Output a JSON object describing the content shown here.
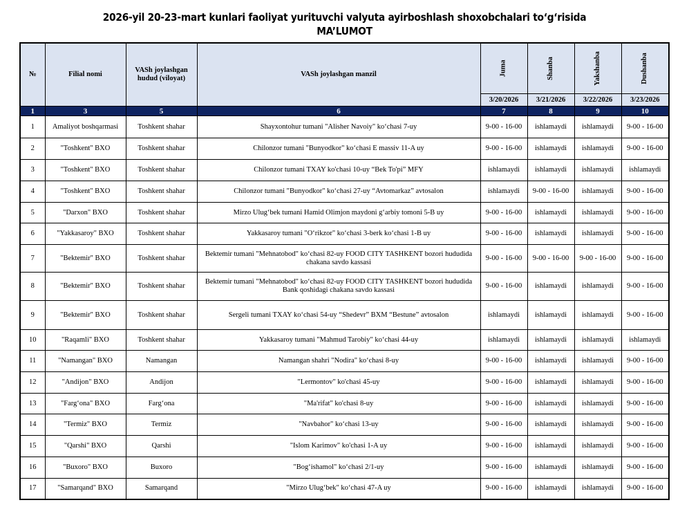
{
  "title": {
    "line1": "2026-yil 20-23-mart kunlari faoliyat yurituvchi valyuta ayirboshlash shoxobchalari to‘g‘risida",
    "line2": "MA’LUMOT"
  },
  "header": {
    "no": "№",
    "branch": "Filial nomi",
    "region": "VASh joylashgan hudud (viloyat)",
    "address": "VASh joylashgan manzil",
    "days": [
      {
        "name": "Juma",
        "date": "3/20/2026"
      },
      {
        "name": "Shanba",
        "date": "3/21/2026"
      },
      {
        "name": "Yakshanba",
        "date": "3/22/2026"
      },
      {
        "name": "Dushanba",
        "date": "3/23/2026"
      }
    ],
    "col_numbers": [
      "1",
      "3",
      "5",
      "6",
      "7",
      "8",
      "9",
      "10"
    ]
  },
  "colors": {
    "header_bg": "#dbe3f1",
    "number_row_bg": "#0f2461"
  },
  "rows": [
    {
      "no": "1",
      "branch": "Amaliyot boshqarmasi",
      "region": "Toshkent shahar",
      "address": "Shayxontohur tumani \"Alisher Navoiy\" ko‘chasi 7-uy",
      "sched": [
        "9-00 - 16-00",
        "ishlamaydi",
        "ishlamaydi",
        "9-00 - 16-00"
      ]
    },
    {
      "no": "2",
      "branch": "\"Toshkent\" BXO",
      "region": "Toshkent shahar",
      "address": "Chilonzor tumani \"Bunyodkor\" ko‘chasi E massiv 11-A uy",
      "sched": [
        "9-00 - 16-00",
        "ishlamaydi",
        "ishlamaydi",
        "9-00 - 16-00"
      ]
    },
    {
      "no": "3",
      "branch": "\"Toshkent\" BXO",
      "region": "Toshkent shahar",
      "address": "Chilonzor tumani TXAY ko'chasi 10-uy “Bek To'pi” MFY",
      "sched": [
        "ishlamaydi",
        "ishlamaydi",
        "ishlamaydi",
        "ishlamaydi"
      ]
    },
    {
      "no": "4",
      "branch": "\"Toshkent\" BXO",
      "region": "Toshkent shahar",
      "address": "Chilonzor tumani \"Bunyodkor\" ko‘chasi 27-uy “Avtomarkaz” avtosalon",
      "sched": [
        "ishlamaydi",
        "9-00 - 16-00",
        "ishlamaydi",
        "9-00 - 16-00"
      ]
    },
    {
      "no": "5",
      "branch": "\"Darxon\" BXO",
      "region": "Toshkent shahar",
      "address": "Mirzo Ulug‘bek tumani Hamid Olimjon maydoni g‘arbiy tomoni 5-B uy",
      "sched": [
        "9-00 - 16-00",
        "ishlamaydi",
        "ishlamaydi",
        "9-00 - 16-00"
      ]
    },
    {
      "no": "6",
      "branch": "\"Yakkasaroy\" BXO",
      "region": "Toshkent shahar",
      "address": "Yakkasaroy tumani \"O‘rikzor\" ko‘chasi 3-berk ko‘chasi 1-B uy",
      "sched": [
        "9-00 - 16-00",
        "ishlamaydi",
        "ishlamaydi",
        "9-00 - 16-00"
      ]
    },
    {
      "no": "7",
      "branch": "\"Bektemir\" BXO",
      "region": "Toshkent shahar",
      "address": "Bektemir tumani \"Mehnatobod\" ko‘chasi 82-uy FOOD CITY TASHKENT bozori hududida chakana savdo kassasi",
      "sched": [
        "9-00 - 16-00",
        "9-00 - 16-00",
        "9-00 - 16-00",
        "9-00 - 16-00"
      ]
    },
    {
      "no": "8",
      "branch": "\"Bektemir\" BXO",
      "region": "Toshkent shahar",
      "address": "Bektemir tumani \"Mehnatobod\" ko‘chasi 82-uy FOOD CITY TASHKENT bozori hududida Bank qoshidagi chakana savdo kassasi",
      "sched": [
        "9-00 - 16-00",
        "ishlamaydi",
        "ishlamaydi",
        "9-00 - 16-00"
      ]
    },
    {
      "no": "9",
      "branch": "\"Bektemir\" BXO",
      "region": "Toshkent shahar",
      "address": "Sergeli tumani TXAY ko‘chasi 54-uy “Shedevr” BXM “Bestune” avtosalon",
      "sched": [
        "ishlamaydi",
        "ishlamaydi",
        "ishlamaydi",
        "9-00 - 16-00"
      ]
    },
    {
      "no": "10",
      "branch": "\"Raqamli\" BXO",
      "region": "Toshkent shahar",
      "address": "Yakkasaroy tumani \"Mahmud Tarobiy\" ko‘chasi 44-uy",
      "sched": [
        "ishlamaydi",
        "ishlamaydi",
        "ishlamaydi",
        "ishlamaydi"
      ]
    },
    {
      "no": "11",
      "branch": "\"Namangan\" BXO",
      "region": "Namangan",
      "address": "Namangan shahri \"Nodira\" ko‘chasi 8-uy",
      "sched": [
        "9-00 - 16-00",
        "ishlamaydi",
        "ishlamaydi",
        "9-00 - 16-00"
      ]
    },
    {
      "no": "12",
      "branch": "\"Andijon\" BXO",
      "region": "Andijon",
      "address": "\"Lermontov\" ko'chasi 45-uy",
      "sched": [
        "9-00 - 16-00",
        "ishlamaydi",
        "ishlamaydi",
        "9-00 - 16-00"
      ]
    },
    {
      "no": "13",
      "branch": "\"Farg‘ona\" BXO",
      "region": "Farg‘ona",
      "address": "\"Ma'rifat\" ko'chasi 8-uy",
      "sched": [
        "9-00 - 16-00",
        "ishlamaydi",
        "ishlamaydi",
        "9-00 - 16-00"
      ]
    },
    {
      "no": "14",
      "branch": "\"Termiz\" BXO",
      "region": "Termiz",
      "address": "\"Navbahor\" ko‘chasi 13-uy",
      "sched": [
        "9-00 - 16-00",
        "ishlamaydi",
        "ishlamaydi",
        "9-00 - 16-00"
      ]
    },
    {
      "no": "15",
      "branch": "\"Qarshi\" BXO",
      "region": "Qarshi",
      "address": "\"Islom Karimov\" ko'chasi 1-A uy",
      "sched": [
        "9-00 - 16-00",
        "ishlamaydi",
        "ishlamaydi",
        "9-00 - 16-00"
      ]
    },
    {
      "no": "16",
      "branch": "\"Buxoro\" BXO",
      "region": "Buxoro",
      "address": "\"Bog‘ishamol\" ko‘chasi 2/1-uy",
      "sched": [
        "9-00 - 16-00",
        "ishlamaydi",
        "ishlamaydi",
        "9-00 - 16-00"
      ]
    },
    {
      "no": "17",
      "branch": "\"Samarqand\" BXO",
      "region": "Samarqand",
      "address": "\"Mirzo Ulug‘bek\" ko‘chasi 47-A uy",
      "sched": [
        "9-00 - 16-00",
        "ishlamaydi",
        "ishlamaydi",
        "9-00 - 16-00"
      ]
    }
  ]
}
